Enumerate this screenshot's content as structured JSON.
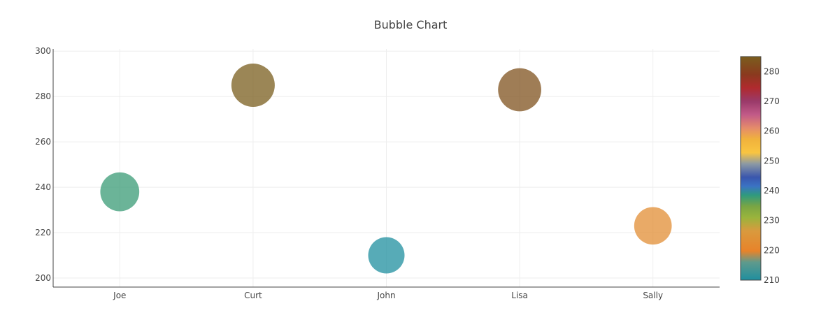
{
  "chart_data": {
    "type": "scatter",
    "title": "Bubble Chart",
    "xlabel": "",
    "ylabel": "",
    "categories": [
      "Joe",
      "Curt",
      "John",
      "Lisa",
      "Sally"
    ],
    "y": [
      238,
      285,
      210,
      283,
      223
    ],
    "sizes": [
      238,
      285,
      210,
      283,
      223
    ],
    "color_values": [
      238,
      285,
      210,
      283,
      223
    ],
    "ylim": [
      196,
      301
    ],
    "yticks": [
      200,
      220,
      240,
      260,
      280,
      300
    ],
    "grid": true,
    "legend": "none",
    "marker_opacity": 0.75,
    "colorbar": {
      "range": [
        210,
        285
      ],
      "ticks": [
        210,
        220,
        230,
        240,
        250,
        260,
        270,
        280
      ],
      "scale": [
        [
          0.0,
          "#1f8f9f"
        ],
        [
          0.08,
          "#5f9a8c"
        ],
        [
          0.13,
          "#e8832a"
        ],
        [
          0.22,
          "#d99a3e"
        ],
        [
          0.28,
          "#9ab43c"
        ],
        [
          0.33,
          "#79a544"
        ],
        [
          0.38,
          "#2f9a7e"
        ],
        [
          0.42,
          "#3b73c4"
        ],
        [
          0.46,
          "#3a56ad"
        ],
        [
          0.52,
          "#8c99a4"
        ],
        [
          0.57,
          "#f9c541"
        ],
        [
          0.63,
          "#f0b23c"
        ],
        [
          0.68,
          "#e58c6a"
        ],
        [
          0.74,
          "#c25a88"
        ],
        [
          0.8,
          "#9a3a6a"
        ],
        [
          0.86,
          "#b02a2e"
        ],
        [
          0.92,
          "#8a3a1e"
        ],
        [
          1.0,
          "#7a5e1e"
        ]
      ]
    }
  }
}
